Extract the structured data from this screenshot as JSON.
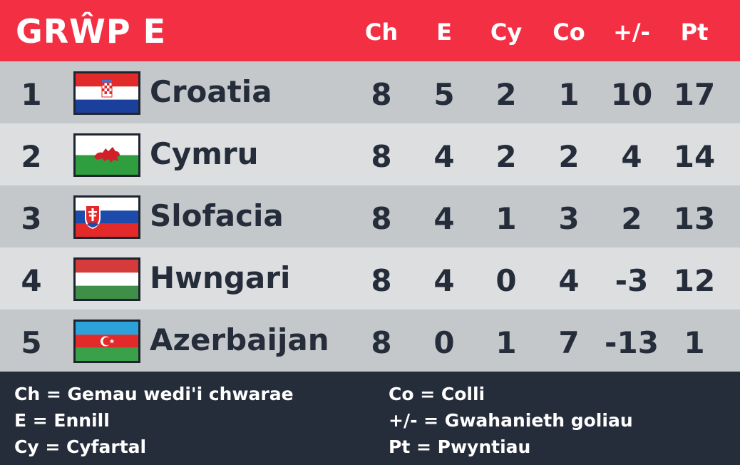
{
  "header": {
    "title": "GRŴP E",
    "columns": [
      "Ch",
      "E",
      "Cy",
      "Co",
      "+/-",
      "Pt"
    ]
  },
  "rows": [
    {
      "pos": "1",
      "team": "Croatia",
      "flag": "croatia-flag",
      "cells": [
        "8",
        "5",
        "2",
        "1",
        "10",
        "17"
      ]
    },
    {
      "pos": "2",
      "team": "Cymru",
      "flag": "wales-flag",
      "cells": [
        "8",
        "4",
        "2",
        "2",
        "4",
        "14"
      ]
    },
    {
      "pos": "3",
      "team": "Slofacia",
      "flag": "slovakia-flag",
      "cells": [
        "8",
        "4",
        "1",
        "3",
        "2",
        "13"
      ]
    },
    {
      "pos": "4",
      "team": "Hwngari",
      "flag": "hungary-flag",
      "cells": [
        "8",
        "4",
        "0",
        "4",
        "-3",
        "12"
      ]
    },
    {
      "pos": "5",
      "team": "Azerbaijan",
      "flag": "azerbaijan-flag",
      "cells": [
        "8",
        "0",
        "1",
        "7",
        "-13",
        "1"
      ]
    }
  ],
  "legend": {
    "ch": "Ch = Gemau wedi'i chwarae",
    "e": "E = Ennill",
    "cy": "Cy = Cyfartal",
    "co": "Co = Colli",
    "gd": "+/- = Gwahanieth goliau",
    "pt": "Pt = Pwyntiau"
  },
  "colors": {
    "header": "#f33043",
    "row_dark": "#c5c8cb",
    "row_light": "#dcdee0",
    "text_dark": "#262d3a",
    "legend_bg": "#262d3a"
  }
}
